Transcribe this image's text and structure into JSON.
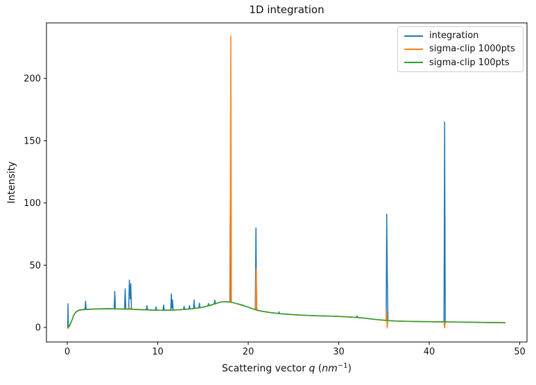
{
  "chart_data": {
    "type": "line",
    "title": "1D integration",
    "ylabel": "Intensity",
    "xlabel": "Scattering vector q (nm⁻¹)",
    "xlabel_parts": {
      "prefix": "Scattering vector ",
      "q": "q",
      "open": " (",
      "nm": "nm",
      "sup": "−1",
      "close": ")"
    },
    "axes": {
      "xlim": [
        -2.3,
        50.8
      ],
      "ylim": [
        -11.7,
        244.6
      ],
      "xticks": [
        0,
        10,
        20,
        30,
        40,
        50
      ],
      "yticks": [
        0,
        50,
        100,
        150,
        200
      ],
      "grid": false,
      "frame_color": "#000000"
    },
    "legend": {
      "position": "upper right",
      "entries": [
        {
          "label": "integration",
          "color": "#1f77b4"
        },
        {
          "label": "sigma-clip 1000pts",
          "color": "#ff7f0e"
        },
        {
          "label": "sigma-clip 100pts",
          "color": "#2ca02c"
        }
      ]
    },
    "series": [
      {
        "name": "integration",
        "color": "#1f77b4",
        "x": [
          0.05,
          0.08,
          0.12,
          0.3,
          0.5,
          0.7,
          0.9,
          1.1,
          1.4,
          1.8,
          1.96,
          2.02,
          2.08,
          2.5,
          3.5,
          4.5,
          5.18,
          5.25,
          5.32,
          5.8,
          6.33,
          6.4,
          6.47,
          6.79,
          6.86,
          6.96,
          7.02,
          7.09,
          7.5,
          8.0,
          8.45,
          8.75,
          8.8,
          8.87,
          9.3,
          9.75,
          9.81,
          9.88,
          10.3,
          10.58,
          10.65,
          10.72,
          11.1,
          11.44,
          11.5,
          11.57,
          11.63,
          11.7,
          12.2,
          12.55,
          12.85,
          12.91,
          12.98,
          13.44,
          13.5,
          13.57,
          13.95,
          14.01,
          14.08,
          14.54,
          14.6,
          14.67,
          15.2,
          15.54,
          15.6,
          15.67,
          16.24,
          16.3,
          16.37,
          17.0,
          17.6,
          17.96,
          18.02,
          18.09,
          18.6,
          19.0,
          19.4,
          19.8,
          20.3,
          20.78,
          20.85,
          20.92,
          21.5,
          22.5,
          23.34,
          23.4,
          23.47,
          24.5,
          25.5,
          26.5,
          27.5,
          28.5,
          29.5,
          30.5,
          31.5,
          31.96,
          32.02,
          32.09,
          32.5,
          33.5,
          34.5,
          35.24,
          35.3,
          35.37,
          35.44,
          36.5,
          37.5,
          38.5,
          39.5,
          40.5,
          41.63,
          41.7,
          41.77,
          42.5,
          43.5,
          44.5,
          45.5,
          46.5,
          47.5,
          48.4
        ],
        "y": [
          -0.5,
          19,
          0.8,
          2.2,
          5.6,
          9.6,
          12.1,
          13.3,
          14.1,
          14.5,
          14.6,
          21,
          14.6,
          14.7,
          15.0,
          15.1,
          15.0,
          29,
          15.0,
          14.9,
          14.8,
          31,
          14.8,
          14.7,
          38,
          23,
          35,
          14.6,
          14.5,
          14.4,
          14.3,
          14.2,
          17.5,
          14.2,
          14.0,
          13.9,
          16.5,
          13.9,
          13.8,
          13.8,
          18,
          13.8,
          13.9,
          13.9,
          27,
          15.5,
          22,
          13.9,
          14.1,
          14.3,
          14.4,
          17,
          14.5,
          14.8,
          17.5,
          14.8,
          15.2,
          22,
          15.3,
          15.7,
          19.5,
          15.8,
          16.6,
          17.2,
          19.2,
          17.3,
          18.8,
          22,
          18.9,
          20.5,
          20.7,
          20.4,
          103,
          20.3,
          19.4,
          18.6,
          17.9,
          16.7,
          15.4,
          14.2,
          80,
          13.8,
          13.0,
          11.9,
          11.2,
          12.5,
          11.1,
          10.5,
          10.0,
          9.7,
          9.4,
          9.2,
          9.0,
          8.7,
          8.3,
          8.1,
          9.2,
          8.0,
          7.7,
          6.9,
          6.1,
          5.6,
          91,
          38,
          5.5,
          5.1,
          4.9,
          4.8,
          4.65,
          4.55,
          4.5,
          165,
          4.45,
          4.4,
          4.3,
          4.2,
          4.1,
          4.0,
          3.9,
          3.8
        ]
      },
      {
        "name": "sigma-clip 1000pts",
        "color": "#ff7f0e",
        "x": [
          0.05,
          0.15,
          0.3,
          0.5,
          0.7,
          0.9,
          1.1,
          1.4,
          1.8,
          2.5,
          3.5,
          4.5,
          5.5,
          6.5,
          6.88,
          7.5,
          8.5,
          9.5,
          10.5,
          11.5,
          12.5,
          13.5,
          14.5,
          15.5,
          16.2,
          17.0,
          17.6,
          18.0,
          18.07,
          18.14,
          19.0,
          19.8,
          20.6,
          20.81,
          20.88,
          20.95,
          21.5,
          22.5,
          23.5,
          24.5,
          25.5,
          26.5,
          27.5,
          28.5,
          29.5,
          30.5,
          31.5,
          32.5,
          33.5,
          34.5,
          35.22,
          35.28,
          35.35,
          35.42,
          36.5,
          37.5,
          38.5,
          39.5,
          40.5,
          41.63,
          41.7,
          41.78,
          42.5,
          43.5,
          44.5,
          45.5,
          46.5,
          47.5,
          48.45
        ],
        "y": [
          -1.2,
          0.0,
          1.8,
          5.3,
          9.3,
          11.8,
          13.0,
          13.8,
          14.2,
          14.5,
          14.8,
          14.9,
          14.8,
          14.6,
          15.6,
          14.3,
          14.1,
          13.8,
          13.7,
          13.8,
          14.2,
          14.7,
          15.5,
          17.1,
          18.7,
          20.4,
          20.6,
          20.3,
          234,
          20.2,
          18.5,
          16.6,
          14.7,
          14.1,
          47,
          13.7,
          12.9,
          11.8,
          11.0,
          10.4,
          9.9,
          9.6,
          9.3,
          9.1,
          8.9,
          8.6,
          8.2,
          7.6,
          6.8,
          6.0,
          5.6,
          13.0,
          -0.5,
          5.5,
          5.0,
          4.85,
          4.7,
          4.55,
          4.45,
          4.4,
          -0.5,
          4.35,
          4.3,
          4.2,
          4.1,
          4.0,
          3.9,
          3.8,
          3.6
        ]
      },
      {
        "name": "sigma-clip 100pts",
        "color": "#2ca02c",
        "x": [
          0.15,
          0.3,
          0.5,
          0.7,
          0.9,
          1.1,
          1.4,
          1.8,
          2.5,
          3.5,
          4.5,
          5.5,
          6.5,
          7.5,
          8.5,
          9.5,
          10.5,
          11.5,
          12.5,
          13.5,
          14.5,
          15.5,
          16.2,
          17.0,
          17.6,
          18.2,
          19.0,
          19.8,
          20.6,
          21.5,
          22.5,
          23.5,
          24.5,
          25.5,
          26.5,
          27.5,
          28.5,
          29.5,
          30.5,
          31.5,
          32.5,
          33.5,
          34.5,
          35.5,
          36.5,
          37.5,
          38.5,
          39.5,
          40.5,
          41.5,
          42.5,
          43.5,
          44.5,
          45.5,
          46.5,
          47.5,
          48.4
        ],
        "y": [
          0.3,
          2.0,
          5.5,
          9.5,
          12.0,
          13.2,
          14.0,
          14.4,
          14.6,
          14.9,
          15.0,
          14.9,
          14.7,
          14.4,
          14.2,
          13.9,
          13.8,
          13.9,
          14.3,
          14.8,
          15.6,
          17.2,
          18.8,
          20.5,
          20.7,
          20.1,
          18.6,
          16.7,
          14.8,
          13.0,
          11.9,
          11.1,
          10.5,
          10.0,
          9.7,
          9.4,
          9.2,
          9.0,
          8.7,
          8.3,
          7.7,
          6.9,
          6.1,
          5.5,
          5.1,
          4.95,
          4.8,
          4.7,
          4.6,
          4.5,
          4.4,
          4.3,
          4.2,
          4.1,
          4.0,
          3.9,
          3.8
        ]
      }
    ]
  }
}
